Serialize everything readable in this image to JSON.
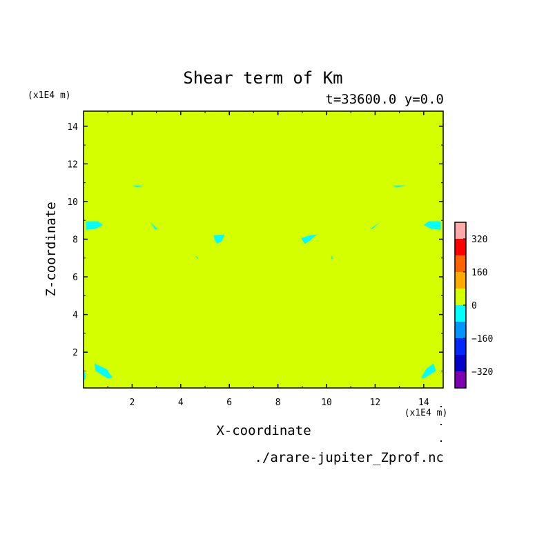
{
  "chart_data": {
    "type": "heatmap",
    "title": "Shear term of Km",
    "subtitle": "t=33600.0 y=0.0",
    "xlabel": "X-coordinate",
    "ylabel": "Z-coordinate",
    "x_unit": "(x1E4 m)",
    "y_unit": "(x1E4 m)",
    "source_file": "./arare-jupiter_Zprof.nc",
    "xlim": [
      0,
      14.8
    ],
    "ylim": [
      0.1,
      14.8
    ],
    "x_ticks": [
      2,
      4,
      6,
      8,
      10,
      12,
      14
    ],
    "y_ticks": [
      2,
      4,
      6,
      8,
      10,
      12,
      14
    ],
    "x_tick_labels": [
      "2",
      "4",
      "6",
      "8",
      "10",
      "12",
      "14"
    ],
    "y_tick_labels": [
      "2",
      "4",
      "6",
      "8",
      "10",
      "12",
      "14"
    ],
    "background_level_color": "#d4ff00",
    "colorbar": {
      "levels": [
        {
          "range": [
            -400,
            -320
          ],
          "color": "#7f00b2"
        },
        {
          "range": [
            -320,
            -240
          ],
          "color": "#0000c8"
        },
        {
          "range": [
            -240,
            -160
          ],
          "color": "#0028ff"
        },
        {
          "range": [
            -160,
            -80
          ],
          "color": "#0096ff"
        },
        {
          "range": [
            -80,
            0
          ],
          "color": "#00ffff"
        },
        {
          "range": [
            0,
            80
          ],
          "color": "#d4ff00"
        },
        {
          "range": [
            80,
            160
          ],
          "color": "#ffaa00"
        },
        {
          "range": [
            160,
            240
          ],
          "color": "#ff6400"
        },
        {
          "range": [
            240,
            320
          ],
          "color": "#ff0000"
        },
        {
          "range": [
            320,
            400
          ],
          "color": "#ffaaaa"
        }
      ],
      "labels": [
        {
          "value": 320,
          "text": "320"
        },
        {
          "value": 160,
          "text": "160"
        },
        {
          "value": 0,
          "text": "0"
        },
        {
          "value": -160,
          "text": "−160"
        },
        {
          "value": -320,
          "text": "−320"
        }
      ],
      "range": [
        -400,
        400
      ]
    },
    "regions": [
      {
        "level_color": "#00ffff",
        "points": [
          [
            2.0,
            10.85
          ],
          [
            2.5,
            10.85
          ],
          [
            2.2,
            10.75
          ]
        ]
      },
      {
        "level_color": "#00ffff",
        "points": [
          [
            12.7,
            10.85
          ],
          [
            13.3,
            10.85
          ],
          [
            12.9,
            10.75
          ]
        ]
      },
      {
        "level_color": "#00ffff",
        "points": [
          [
            0.1,
            8.95
          ],
          [
            0.6,
            8.95
          ],
          [
            0.8,
            8.75
          ],
          [
            0.5,
            8.55
          ],
          [
            0.1,
            8.5
          ]
        ]
      },
      {
        "level_color": "#00ffff",
        "points": [
          [
            14.7,
            8.95
          ],
          [
            14.2,
            8.95
          ],
          [
            14.0,
            8.75
          ],
          [
            14.3,
            8.55
          ],
          [
            14.7,
            8.5
          ]
        ]
      },
      {
        "level_color": "#00ffff",
        "points": [
          [
            2.75,
            8.9
          ],
          [
            3.05,
            8.55
          ],
          [
            2.95,
            8.5
          ]
        ]
      },
      {
        "level_color": "#00ffff",
        "points": [
          [
            11.8,
            8.55
          ],
          [
            12.2,
            8.9
          ],
          [
            11.9,
            8.55
          ]
        ]
      },
      {
        "level_color": "#00ffff",
        "points": [
          [
            5.35,
            8.2
          ],
          [
            5.8,
            8.25
          ],
          [
            5.7,
            7.9
          ],
          [
            5.5,
            7.75
          ],
          [
            5.4,
            7.95
          ]
        ]
      },
      {
        "level_color": "#00ffff",
        "points": [
          [
            9.3,
            8.2
          ],
          [
            9.6,
            8.25
          ],
          [
            9.3,
            7.9
          ],
          [
            9.1,
            7.75
          ],
          [
            8.95,
            8.05
          ]
        ]
      },
      {
        "level_color": "#00ffff",
        "points": [
          [
            4.6,
            7.15
          ],
          [
            4.72,
            7.0
          ],
          [
            4.68,
            6.95
          ]
        ]
      },
      {
        "level_color": "#00ffff",
        "points": [
          [
            10.2,
            7.15
          ],
          [
            10.28,
            6.95
          ],
          [
            10.2,
            6.95
          ]
        ]
      },
      {
        "level_color": "#00ffff",
        "points": [
          [
            0.45,
            1.4
          ],
          [
            0.95,
            1.1
          ],
          [
            1.2,
            0.65
          ],
          [
            1.0,
            0.6
          ],
          [
            0.5,
            1.0
          ]
        ]
      },
      {
        "level_color": "#00ffff",
        "points": [
          [
            14.4,
            1.4
          ],
          [
            14.1,
            1.1
          ],
          [
            13.9,
            0.65
          ],
          [
            14.0,
            0.6
          ],
          [
            14.5,
            1.0
          ]
        ]
      },
      {
        "level_color": "#00ffff",
        "points": [
          [
            0.0,
            0.95
          ],
          [
            0.08,
            0.9
          ],
          [
            0.08,
            0.55
          ],
          [
            0.0,
            0.55
          ]
        ]
      }
    ]
  }
}
